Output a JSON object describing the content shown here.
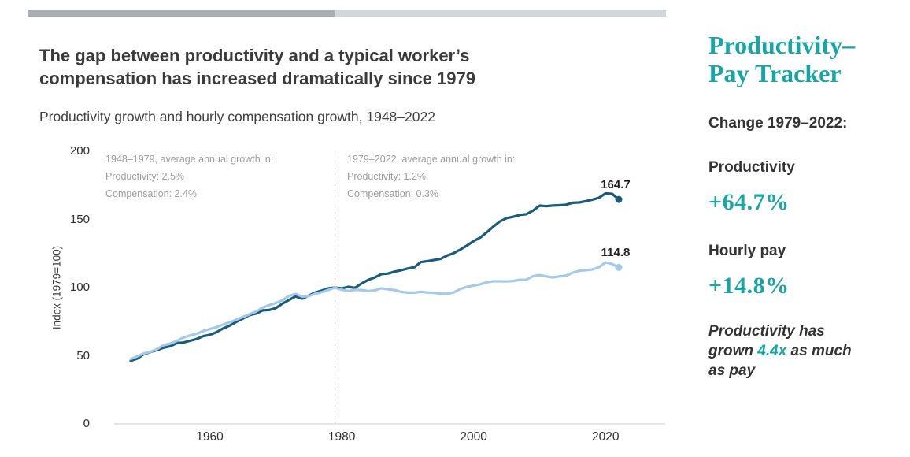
{
  "header": {
    "title": "The gap between productivity and a typical worker’s compensation has increased dramatically since 1979",
    "subtitle": "Productivity growth and hourly compensation growth, 1948–2022"
  },
  "chart_data": {
    "type": "line",
    "title": "Productivity growth and hourly compensation growth, 1948–2022",
    "ylabel": "Index (1979=100)",
    "ylim": [
      0,
      200
    ],
    "yticks": [
      0,
      50,
      100,
      150,
      200
    ],
    "xticks": [
      1960,
      1980,
      2000,
      2020
    ],
    "vline_x": 1979,
    "grid": false,
    "legend": "none",
    "x": [
      1948,
      1949,
      1950,
      1951,
      1952,
      1953,
      1954,
      1955,
      1956,
      1957,
      1958,
      1959,
      1960,
      1961,
      1962,
      1963,
      1964,
      1965,
      1966,
      1967,
      1968,
      1969,
      1970,
      1971,
      1972,
      1973,
      1974,
      1975,
      1976,
      1977,
      1978,
      1979,
      1980,
      1981,
      1982,
      1983,
      1984,
      1985,
      1986,
      1987,
      1988,
      1989,
      1990,
      1991,
      1992,
      1993,
      1994,
      1995,
      1996,
      1997,
      1998,
      1999,
      2000,
      2001,
      2002,
      2003,
      2004,
      2005,
      2006,
      2007,
      2008,
      2009,
      2010,
      2011,
      2012,
      2013,
      2014,
      2015,
      2016,
      2017,
      2018,
      2019,
      2020,
      2021,
      2022
    ],
    "series": [
      {
        "name": "Productivity",
        "color": "#1d5c78",
        "end_label": "164.7",
        "values": [
          46.3,
          47.9,
          51.3,
          52.8,
          54.2,
          55.9,
          57.0,
          59.3,
          59.7,
          61.0,
          62.3,
          64.4,
          65.3,
          67.3,
          70.0,
          72.1,
          74.8,
          77.2,
          79.8,
          80.9,
          83.3,
          83.6,
          85.0,
          88.2,
          90.9,
          93.5,
          91.9,
          94.1,
          96.5,
          97.9,
          99.5,
          100.0,
          99.4,
          100.6,
          99.8,
          103.0,
          105.6,
          107.4,
          109.9,
          110.3,
          111.7,
          112.7,
          114.0,
          114.9,
          118.7,
          119.4,
          120.3,
          121.1,
          123.5,
          125.3,
          128.0,
          130.9,
          134.1,
          136.7,
          140.6,
          144.8,
          148.6,
          151.0,
          151.9,
          153.3,
          153.8,
          156.5,
          160.1,
          159.7,
          160.2,
          160.4,
          160.8,
          162.2,
          162.4,
          163.4,
          164.5,
          165.9,
          169.1,
          168.8,
          164.7
        ]
      },
      {
        "name": "Hourly compensation",
        "color": "#a4c9e9",
        "end_label": "114.8",
        "values": [
          47.5,
          49.6,
          51.8,
          52.9,
          54.9,
          57.8,
          58.9,
          60.9,
          63.4,
          64.9,
          66.2,
          68.1,
          69.6,
          70.9,
          72.9,
          74.5,
          76.5,
          78.4,
          80.4,
          82.4,
          85.3,
          87.1,
          88.7,
          90.6,
          93.9,
          95.4,
          93.4,
          93.7,
          95.5,
          96.7,
          98.3,
          100.0,
          98.4,
          97.6,
          98.4,
          98.2,
          97.5,
          97.9,
          99.5,
          98.7,
          98.2,
          96.9,
          96.3,
          96.3,
          96.9,
          96.4,
          96.1,
          95.6,
          95.5,
          96.5,
          99.1,
          100.6,
          101.4,
          102.5,
          103.9,
          104.7,
          104.6,
          104.5,
          104.8,
          105.7,
          105.8,
          108.4,
          109.2,
          108.2,
          107.5,
          108.2,
          108.7,
          110.9,
          112.3,
          112.8,
          113.3,
          114.9,
          118.5,
          117.3,
          114.8
        ]
      }
    ],
    "annotations": [
      {
        "lines": [
          "1948–1979, average annual growth in:",
          "Productivity: 2.5%",
          "Compensation: 2.4%"
        ]
      },
      {
        "lines": [
          "1979–2022, average annual growth in:",
          "Productivity: 1.2%",
          "Compensation: 0.3%"
        ]
      }
    ]
  },
  "sidebar": {
    "heading_line1": "Productivity–",
    "heading_line2": "Pay Tracker",
    "change_label": "Change 1979–2022:",
    "stats": [
      {
        "label": "Productivity",
        "value": "+64.7%"
      },
      {
        "label": "Hourly pay",
        "value": "+14.8%"
      }
    ],
    "note_pre": "Productivity has grown ",
    "note_highlight": "4.4x",
    "note_post": " as much as pay"
  },
  "colors": {
    "teal_accent": "#18a5a5",
    "productivity_line": "#1d5c78",
    "pay_line": "#a4c9e9",
    "accent_bar_dark": "#a9aeb1",
    "accent_bar_light": "#d3d6d8",
    "annotation_gray": "#9c9c9c"
  }
}
